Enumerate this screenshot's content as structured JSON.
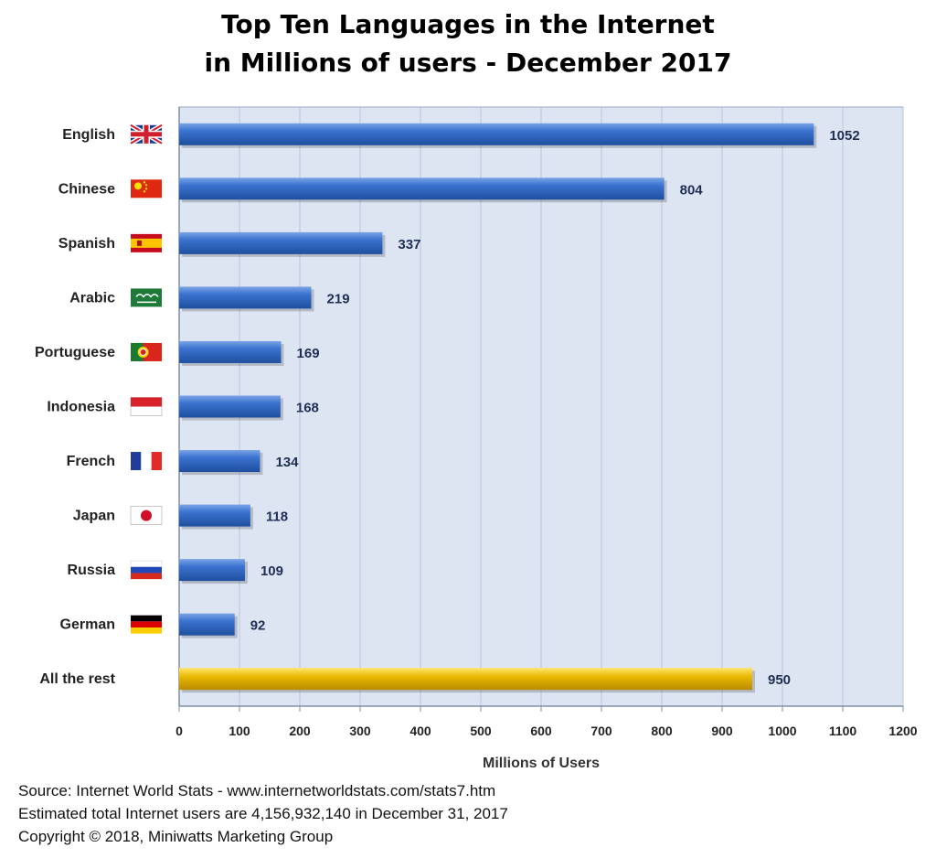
{
  "chart_data": {
    "type": "bar",
    "orientation": "horizontal",
    "title": "Top Ten Languages in the Internet",
    "subtitle": "in Millions of users - December 2017",
    "categories": [
      "English",
      "Chinese",
      "Spanish",
      "Arabic",
      "Portuguese",
      "Indonesia",
      "French",
      "Japan",
      "Russia",
      "German",
      "All the rest"
    ],
    "values": [
      1052,
      804,
      337,
      219,
      169,
      168,
      134,
      118,
      109,
      92,
      950
    ],
    "data_labels": [
      "1052",
      "804",
      "337",
      "219",
      "169",
      "168",
      "134",
      "118",
      "109",
      "92",
      "950"
    ],
    "xlabel": "Millions of Users",
    "ylabel": "",
    "xlim": [
      0,
      1200
    ],
    "x_ticks": [
      "0",
      "100",
      "200",
      "300",
      "400",
      "500",
      "600",
      "700",
      "800",
      "900",
      "1000",
      "1100",
      "1200"
    ],
    "grid": "vertical",
    "flags": [
      "united-kingdom-flag",
      "china-flag",
      "spain-flag",
      "saudi-arabia-flag",
      "portugal-flag",
      "indonesia-flag",
      "france-flag",
      "japan-flag",
      "russia-flag",
      "germany-flag",
      ""
    ],
    "colors": {
      "bar": "#2e64c0",
      "bar_highlight": "#6f9be3",
      "rest_bar": "#e5b700",
      "rest_highlight": "#ffe05a",
      "plot_bg": "#dde5f2",
      "grid": "#b7c6dc",
      "value_label": "#1f2e55"
    }
  },
  "footer": {
    "source": "Source: Internet World Stats - www.internetworldstats.com/stats7.htm",
    "estimate": "Estimated total Internet users are 4,156,932,140 in December 31, 2017",
    "copyright": "Copyright ©  2018, Miniwatts Marketing Group"
  }
}
